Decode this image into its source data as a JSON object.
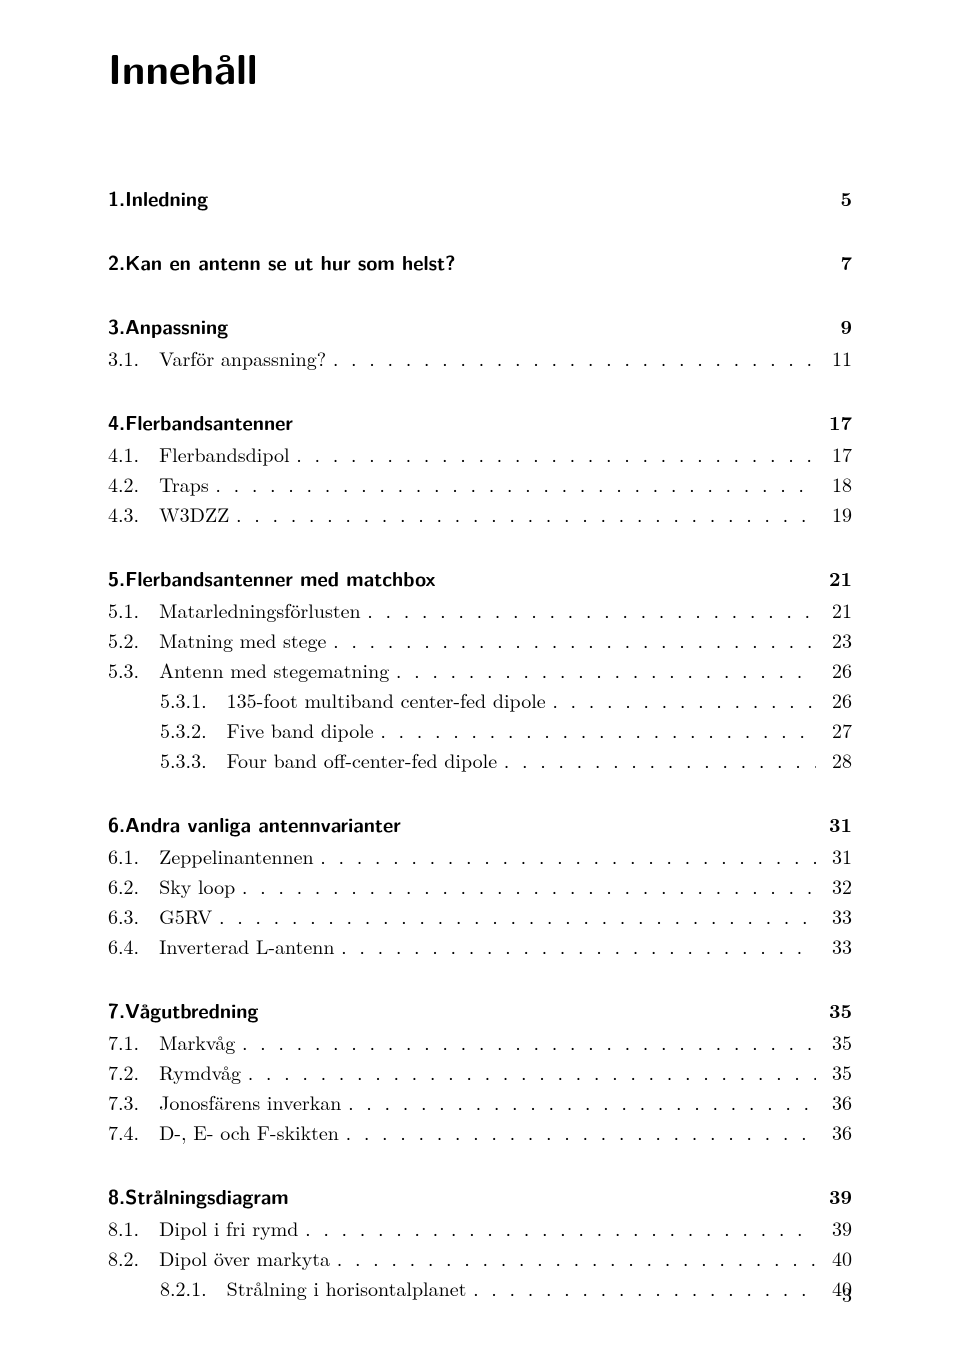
{
  "title": "Innehåll",
  "page_number": "3",
  "chapters": [
    {
      "num": "1.",
      "title": "Inledning",
      "page": "5",
      "entries": []
    },
    {
      "num": "2.",
      "title": "Kan en antenn se ut hur som helst?",
      "page": "7",
      "entries": []
    },
    {
      "num": "3.",
      "title": "Anpassning",
      "page": "9",
      "entries": [
        {
          "label": "3.1.   Varför anpassning?",
          "page": "11",
          "sub": false
        }
      ]
    },
    {
      "num": "4.",
      "title": "Flerbandsantenner",
      "page": "17",
      "entries": [
        {
          "label": "4.1.   Flerbandsdipol",
          "page": "17",
          "sub": false
        },
        {
          "label": "4.2.   Traps",
          "page": "18",
          "sub": false
        },
        {
          "label": "4.3.   W3DZZ",
          "page": "19",
          "sub": false
        }
      ]
    },
    {
      "num": "5.",
      "title": "Flerbandsantenner med matchbox",
      "page": "21",
      "entries": [
        {
          "label": "5.1.   Matarledningsförlusten",
          "page": "21",
          "sub": false
        },
        {
          "label": "5.2.   Matning med stege",
          "page": "23",
          "sub": false
        },
        {
          "label": "5.3.   Antenn med stegematning",
          "page": "26",
          "sub": false
        },
        {
          "label": "5.3.1.   135-foot multiband center-fed dipole",
          "page": "26",
          "sub": true
        },
        {
          "label": "5.3.2.   Five band dipole",
          "page": "27",
          "sub": true
        },
        {
          "label": "5.3.3.   Four band off-center-fed dipole",
          "page": "28",
          "sub": true
        }
      ]
    },
    {
      "num": "6.",
      "title": "Andra vanliga antennvarianter",
      "page": "31",
      "entries": [
        {
          "label": "6.1.   Zeppelinantennen",
          "page": "31",
          "sub": false
        },
        {
          "label": "6.2.   Sky loop",
          "page": "32",
          "sub": false
        },
        {
          "label": "6.3.   G5RV",
          "page": "33",
          "sub": false
        },
        {
          "label": "6.4.   Inverterad L-antenn",
          "page": "33",
          "sub": false
        }
      ]
    },
    {
      "num": "7.",
      "title": "Vågutbredning",
      "page": "35",
      "entries": [
        {
          "label": "7.1.   Markvåg",
          "page": "35",
          "sub": false
        },
        {
          "label": "7.2.   Rymdvåg",
          "page": "35",
          "sub": false
        },
        {
          "label": "7.3.   Jonosfärens inverkan",
          "page": "36",
          "sub": false
        },
        {
          "label": "7.4.   D-, E- och F-skikten",
          "page": "36",
          "sub": false
        }
      ]
    },
    {
      "num": "8.",
      "title": "Strålningsdiagram",
      "page": "39",
      "entries": [
        {
          "label": "8.1.   Dipol i fri rymd",
          "page": "39",
          "sub": false
        },
        {
          "label": "8.2.   Dipol över markyta",
          "page": "40",
          "sub": false
        },
        {
          "label": "8.2.1.   Strålning i horisontalplanet",
          "page": "40",
          "sub": true
        }
      ]
    }
  ]
}
